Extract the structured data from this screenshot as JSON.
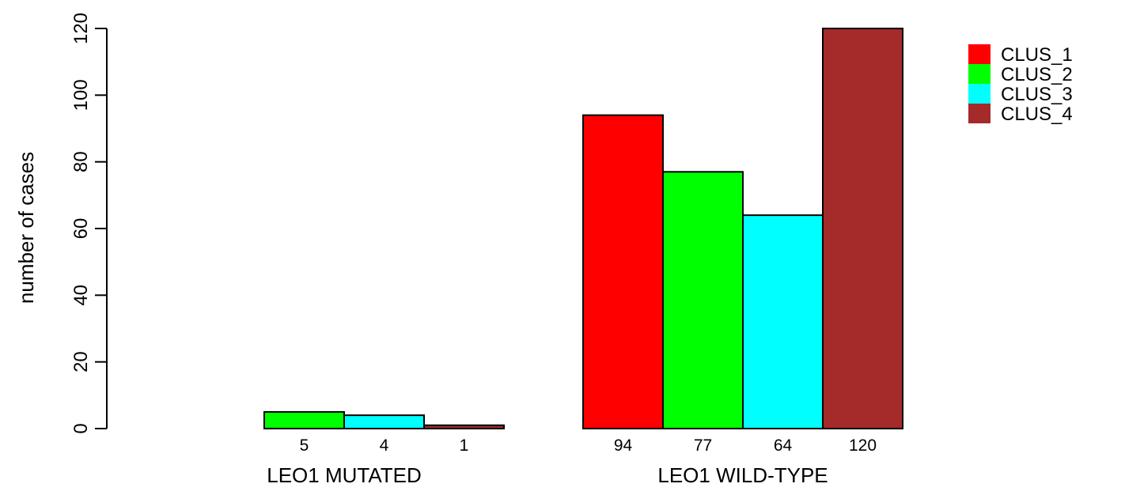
{
  "chart_data": {
    "type": "bar",
    "ylabel": "number of cases",
    "ylim": [
      0,
      120
    ],
    "yticks": [
      "0",
      "20",
      "40",
      "60",
      "80",
      "100",
      "120"
    ],
    "groups": [
      "LEO1 MUTATED",
      "LEO1 WILD-TYPE"
    ],
    "series": [
      {
        "name": "CLUS_1",
        "color": "#ff0000",
        "values": [
          0,
          94
        ],
        "labels": [
          "",
          "94"
        ]
      },
      {
        "name": "CLUS_2",
        "color": "#00ff00",
        "values": [
          5,
          77
        ],
        "labels": [
          "5",
          "77"
        ]
      },
      {
        "name": "CLUS_3",
        "color": "#00ffff",
        "values": [
          4,
          64
        ],
        "labels": [
          "4",
          "64"
        ]
      },
      {
        "name": "CLUS_4",
        "color": "#a52a2a",
        "values": [
          1,
          120
        ],
        "labels": [
          "1",
          "120"
        ]
      }
    ],
    "legend_position": "top-right"
  }
}
